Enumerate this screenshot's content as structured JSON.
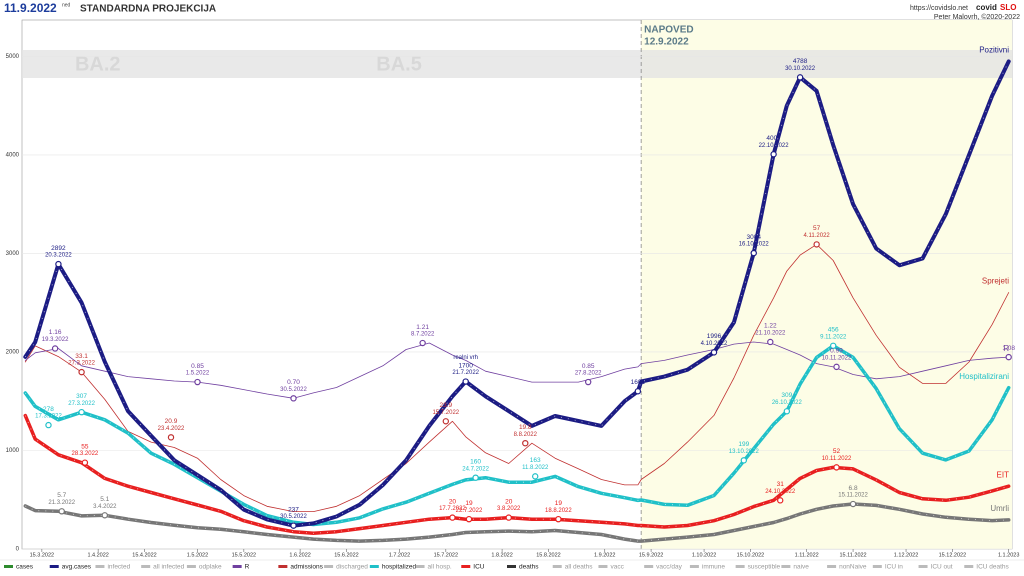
{
  "chart_data": {
    "type": "line",
    "header": {
      "date": "11.9.2022",
      "day": "ned",
      "title": "STANDARDNA PROJEKCIJA",
      "url": "https://covidslo.net",
      "brand": [
        "covid",
        "SLO"
      ],
      "author": "Peter Malovrh, ©2020-2022"
    },
    "forecast": {
      "label": "NAPOVED",
      "date": "12.9.2022"
    },
    "variants": [
      {
        "label": "BA.2",
        "x": "25.3.2022"
      },
      {
        "label": "BA.5",
        "x": "24.6.2022"
      }
    ],
    "xlim": [
      "9.3.2022",
      "2.1.2023"
    ],
    "xticks": [
      "15.3.2022",
      "1.4.2022",
      "15.4.2022",
      "1.5.2022",
      "15.5.2022",
      "1.6.2022",
      "15.6.2022",
      "1.7.2022",
      "15.7.2022",
      "1.8.2022",
      "15.8.2022",
      "1.9.2022",
      "15.9.2022",
      "1.10.2022",
      "15.10.2022",
      "1.11.2022",
      "15.11.2022",
      "1.12.2022",
      "15.12.2022",
      "1.1.2023"
    ],
    "ylim": [
      0,
      5370
    ],
    "yticks": [
      0,
      1000,
      2000,
      3000,
      4000,
      5000
    ],
    "grid": true,
    "x": [
      "10.3.2022",
      "13.3.2022",
      "20.3.2022",
      "27.3.2022",
      "3.4.2022",
      "10.4.2022",
      "17.4.2022",
      "24.4.2022",
      "1.5.2022",
      "8.5.2022",
      "15.5.2022",
      "22.5.2022",
      "30.5.2022",
      "5.6.2022",
      "12.6.2022",
      "19.6.2022",
      "26.6.2022",
      "3.7.2022",
      "10.7.2022",
      "17.7.2022",
      "21.7.2022",
      "27.7.2022",
      "3.8.2022",
      "10.8.2022",
      "17.8.2022",
      "24.8.2022",
      "31.8.2022",
      "7.9.2022",
      "11.9.2022",
      "12.9.2022",
      "19.9.2022",
      "26.9.2022",
      "4.10.2022",
      "10.10.2022",
      "16.10.2022",
      "22.10.2022",
      "26.10.2022",
      "30.10.2022",
      "4.11.2022",
      "9.11.2022",
      "15.11.2022",
      "22.11.2022",
      "29.11.2022",
      "6.12.2022",
      "13.12.2022",
      "20.12.2022",
      "27.12.2022",
      "1.1.2023"
    ],
    "series": [
      {
        "name": "Pozitivni",
        "color": "#1c1c84",
        "width": 4,
        "ylim": [
          0,
          5370
        ],
        "values": [
          1950,
          2100,
          2892,
          2500,
          1900,
          1400,
          1150,
          900,
          750,
          600,
          400,
          300,
          237,
          260,
          330,
          450,
          650,
          900,
          1250,
          1550,
          1700,
          1550,
          1400,
          1250,
          1350,
          1300,
          1250,
          1500,
          1601,
          1700,
          1750,
          1820,
          1996,
          2300,
          3004,
          4007,
          4500,
          4788,
          4650,
          4100,
          3500,
          3050,
          2880,
          2950,
          3400,
          4000,
          4600,
          4950
        ]
      },
      {
        "name": "Hospitalizirani",
        "color": "#20c0c8",
        "width": 3.5,
        "ylim": [
          0,
          1187
        ],
        "values": [
          350,
          320,
          290,
          307,
          290,
          260,
          215,
          190,
          160,
          130,
          100,
          75,
          60,
          55,
          60,
          70,
          90,
          105,
          125,
          145,
          155,
          160,
          150,
          150,
          163,
          140,
          125,
          115,
          109,
          110,
          100,
          98,
          120,
          170,
          225,
          280,
          309,
          370,
          430,
          456,
          430,
          360,
          270,
          215,
          200,
          220,
          290,
          362
        ]
      },
      {
        "name": "EIT",
        "color": "#e82020",
        "width": 3.5,
        "ylim": [
          0,
          337
        ],
        "values": [
          85,
          70,
          60,
          55,
          45,
          40,
          36,
          32,
          28,
          24,
          18,
          14,
          11,
          10,
          11,
          13,
          15,
          17,
          19,
          20,
          19,
          19,
          20,
          19,
          19,
          18,
          17,
          16,
          15,
          15,
          14,
          15,
          18,
          22,
          27,
          31,
          38,
          45,
          50,
          52,
          51,
          44,
          36,
          32,
          31,
          33,
          37,
          40
        ]
      },
      {
        "name": "Umrli",
        "color": "#777777",
        "width": 3.5,
        "ylim": [
          0,
          80
        ],
        "values": [
          6.5,
          5.8,
          5.7,
          5,
          5.1,
          4.5,
          4,
          3.6,
          3.2,
          3,
          2.6,
          2.2,
          1.8,
          1.5,
          1.3,
          1.2,
          1.3,
          1.5,
          1.8,
          2.2,
          2.5,
          2.6,
          2.7,
          2.6,
          2.8,
          2.5,
          2.2,
          1.5,
          1.2,
          1.2,
          1.5,
          1.8,
          2.2,
          2.8,
          3.4,
          4,
          4.6,
          5.3,
          6,
          6.5,
          6.8,
          6.6,
          6,
          5.3,
          4.8,
          4.5,
          4.3,
          4.4
        ]
      },
      {
        "name": "Sprejeti",
        "color": "#c03030",
        "width": 0.8,
        "ylim": [
          0,
          99
        ],
        "values": [
          35,
          38,
          36,
          33.1,
          28,
          22,
          20,
          19,
          17,
          13,
          10,
          8,
          7,
          7,
          8,
          10,
          13,
          16,
          20,
          23.9,
          21,
          18,
          16,
          19.8,
          17,
          15,
          13,
          12,
          12,
          13,
          16,
          20,
          25,
          32,
          40,
          47,
          52,
          55,
          57,
          54,
          47,
          40,
          34,
          31,
          31,
          35,
          42,
          48
        ]
      },
      {
        "name": "R",
        "color": "#7040a0",
        "width": 0.8,
        "ylim": [
          -0.69,
          4.19
        ],
        "values": [
          1.05,
          1.12,
          1.16,
          1.0,
          0.95,
          0.9,
          0.88,
          0.86,
          0.85,
          0.82,
          0.78,
          0.74,
          0.7,
          0.75,
          0.8,
          0.9,
          1.0,
          1.15,
          1.21,
          1.1,
          1.05,
          0.95,
          0.9,
          0.85,
          0.85,
          0.85,
          0.9,
          0.97,
          0.99,
          1.02,
          1.05,
          1.1,
          1.15,
          1.2,
          1.22,
          1.2,
          1.15,
          1.1,
          1.02,
          0.99,
          0.92,
          0.88,
          0.9,
          0.95,
          1.0,
          1.05,
          1.07,
          1.08
        ]
      }
    ],
    "annotations": [
      {
        "series": 0,
        "x": "20.3.2022",
        "y": 2892,
        "label": "2892",
        "date": "20.3.2022"
      },
      {
        "series": 0,
        "x": "30.5.2022",
        "y": 237,
        "label": "237",
        "date": "30.5.2022"
      },
      {
        "series": 0,
        "x": "21.7.2022",
        "y": 1700,
        "label": "1700",
        "date": "21.7.2022",
        "note": "realni vrh"
      },
      {
        "series": 0,
        "x": "11.9.2022",
        "y": 1601,
        "label": "1601"
      },
      {
        "series": 0,
        "x": "4.10.2022",
        "y": 1996,
        "label": "1996",
        "date": "4.10.2022"
      },
      {
        "series": 0,
        "x": "16.10.2022",
        "y": 3004,
        "label": "3004",
        "date": "16.10.2022"
      },
      {
        "series": 0,
        "x": "22.10.2022",
        "y": 4007,
        "label": "4007",
        "date": "22.10.2022"
      },
      {
        "series": 0,
        "x": "30.10.2022",
        "y": 4788,
        "label": "4788",
        "date": "30.10.2022"
      },
      {
        "series": 1,
        "x": "17.3.2022",
        "y": 278,
        "label": "278",
        "date": "17.3.2022"
      },
      {
        "series": 1,
        "x": "27.3.2022",
        "y": 307,
        "label": "307",
        "date": "27.3.2022"
      },
      {
        "series": 1,
        "x": "24.7.2022",
        "y": 160,
        "label": "160",
        "date": "24.7.2022"
      },
      {
        "series": 1,
        "x": "11.8.2022",
        "y": 163,
        "label": "163",
        "date": "11.8.2022"
      },
      {
        "series": 1,
        "x": "13.10.2022",
        "y": 199,
        "label": "199",
        "date": "13.10.2022"
      },
      {
        "series": 1,
        "x": "26.10.2022",
        "y": 309,
        "label": "309",
        "date": "26.10.2022"
      },
      {
        "series": 1,
        "x": "9.11.2022",
        "y": 456,
        "label": "456",
        "date": "9.11.2022"
      },
      {
        "series": 2,
        "x": "28.3.2022",
        "y": 55,
        "label": "55",
        "date": "28.3.2022"
      },
      {
        "series": 2,
        "x": "17.7.2022",
        "y": 20,
        "label": "20",
        "date": "17.7.2022"
      },
      {
        "series": 2,
        "x": "22.7.2022",
        "y": 19,
        "label": "19",
        "date": "22.7.2022"
      },
      {
        "series": 2,
        "x": "3.8.2022",
        "y": 20,
        "label": "20",
        "date": "3.8.2022"
      },
      {
        "series": 2,
        "x": "18.8.2022",
        "y": 19,
        "label": "19",
        "date": "18.8.2022"
      },
      {
        "series": 2,
        "x": "24.10.2022",
        "y": 31,
        "label": "31",
        "date": "24.10.2022"
      },
      {
        "series": 2,
        "x": "10.11.2022",
        "y": 52,
        "label": "52",
        "date": "10.11.2022"
      },
      {
        "series": 3,
        "x": "21.3.2022",
        "y": 5.7,
        "label": "5.7",
        "date": "21.3.2022"
      },
      {
        "series": 3,
        "x": "3.4.2022",
        "y": 5.1,
        "label": "5.1",
        "date": "3.4.2022"
      },
      {
        "series": 3,
        "x": "15.11.2022",
        "y": 6.8,
        "label": "6.8",
        "date": "15.11.2022"
      },
      {
        "series": 4,
        "x": "27.3.2022",
        "y": 33.1,
        "label": "33.1",
        "date": "27.3.2022"
      },
      {
        "series": 4,
        "x": "23.4.2022",
        "y": 20.9,
        "label": "20.9",
        "date": "23.4.2022"
      },
      {
        "series": 4,
        "x": "15.7.2022",
        "y": 23.9,
        "label": "23.9",
        "date": "15.7.2022"
      },
      {
        "series": 4,
        "x": "8.8.2022",
        "y": 19.8,
        "label": "19.8",
        "date": "8.8.2022"
      },
      {
        "series": 4,
        "x": "4.11.2022",
        "y": 57,
        "label": "57",
        "date": "4.11.2022"
      },
      {
        "series": 5,
        "x": "19.3.2022",
        "y": 1.16,
        "label": "1.16",
        "date": "19.3.2022"
      },
      {
        "series": 5,
        "x": "1.5.2022",
        "y": 0.85,
        "label": "0.85",
        "date": "1.5.2022"
      },
      {
        "series": 5,
        "x": "30.5.2022",
        "y": 0.7,
        "label": "0.70",
        "date": "30.5.2022"
      },
      {
        "series": 5,
        "x": "8.7.2022",
        "y": 1.21,
        "label": "1.21",
        "date": "8.7.2022"
      },
      {
        "series": 5,
        "x": "27.8.2022",
        "y": 0.85,
        "label": "0.85",
        "date": "27.8.2022"
      },
      {
        "series": 5,
        "x": "21.10.2022",
        "y": 1.22,
        "label": "1.22",
        "date": "21.10.2022"
      },
      {
        "series": 5,
        "x": "10.11.2022",
        "y": 0.99,
        "label": "0.99",
        "date": "10.11.2022"
      },
      {
        "series": 5,
        "x": "1.1.2023",
        "y": 1.08,
        "label": "1.08"
      }
    ],
    "legend": [
      {
        "name": "cases",
        "color": "#2e8b2e"
      },
      {
        "name": "avg.cases",
        "color": "#1c1c84"
      },
      {
        "name": "infected",
        "color": "#bbbbbb"
      },
      {
        "name": "all infected",
        "color": "#bbbbbb"
      },
      {
        "name": "odplake",
        "color": "#bbbbbb"
      },
      {
        "name": "R",
        "color": "#7040a0"
      },
      {
        "name": "admissions",
        "color": "#c03030"
      },
      {
        "name": "discharged",
        "color": "#bbbbbb"
      },
      {
        "name": "hospitalized",
        "color": "#20c0c8"
      },
      {
        "name": "all hosp.",
        "color": "#bbbbbb"
      },
      {
        "name": "ICU",
        "color": "#e82020"
      },
      {
        "name": "deaths",
        "color": "#333333"
      },
      {
        "name": "all deaths",
        "color": "#bbbbbb"
      },
      {
        "name": "vacc",
        "color": "#bbbbbb"
      },
      {
        "name": "vacc/day",
        "color": "#bbbbbb"
      },
      {
        "name": "immune",
        "color": "#bbbbbb"
      },
      {
        "name": "susceptible",
        "color": "#bbbbbb"
      },
      {
        "name": "naive",
        "color": "#bbbbbb"
      },
      {
        "name": "nonNaive",
        "color": "#bbbbbb"
      },
      {
        "name": "ICU in",
        "color": "#bbbbbb"
      },
      {
        "name": "ICU out",
        "color": "#bbbbbb"
      },
      {
        "name": "ICU deaths",
        "color": "#bbbbbb"
      }
    ]
  }
}
